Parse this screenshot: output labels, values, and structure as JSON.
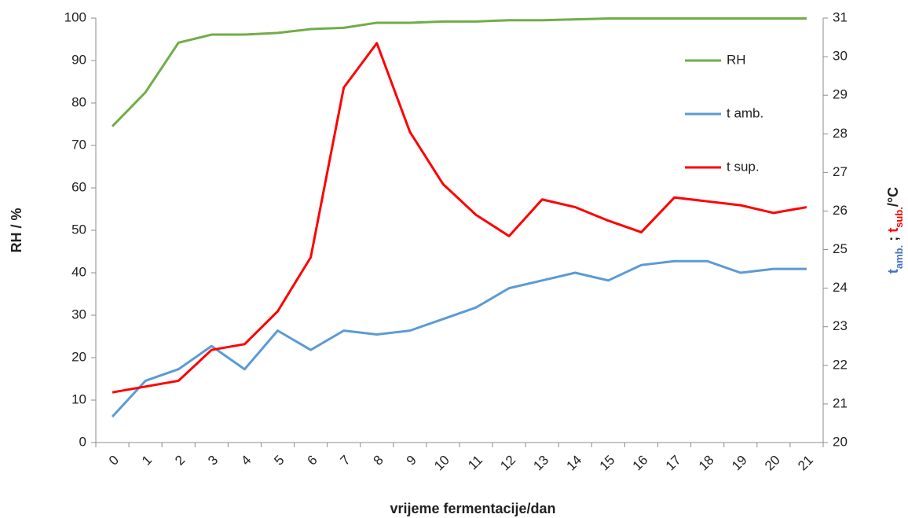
{
  "chart_data": {
    "type": "line",
    "x_label": "vrijeme fermentacije/dan",
    "y_label": "RH / %",
    "y2_label_parts": [
      {
        "text": "t",
        "color": "#4472c4",
        "sub": false
      },
      {
        "text": "amb.",
        "color": "#4472c4",
        "sub": true
      },
      {
        "text": " ; ",
        "color": "#222222",
        "sub": false
      },
      {
        "text": "t",
        "color": "#ff0000",
        "sub": false
      },
      {
        "text": "sub.",
        "color": "#ff0000",
        "sub": true
      },
      {
        "text": "/°C",
        "color": "#222222",
        "sub": false
      }
    ],
    "categories": [
      "0",
      "1",
      "2",
      "3",
      "4",
      "5",
      "6",
      "7",
      "8",
      "9",
      "10",
      "11",
      "12",
      "13",
      "14",
      "15",
      "16",
      "17",
      "18",
      "19",
      "20",
      "21"
    ],
    "series": [
      {
        "name": "RH",
        "color": "#70ad47",
        "axis": "y",
        "values": [
          74.5,
          82.5,
          94.2,
          96.1,
          96.1,
          96.5,
          97.4,
          97.7,
          98.9,
          98.9,
          99.2,
          99.2,
          99.5,
          99.5,
          99.7,
          99.9,
          99.9,
          99.9,
          99.9,
          99.9,
          99.9,
          99.9
        ]
      },
      {
        "name": "t amb.",
        "color": "#5b9bd5",
        "axis": "y2",
        "values": [
          20.67,
          21.6,
          21.9,
          22.5,
          21.9,
          22.9,
          22.4,
          22.9,
          22.8,
          22.9,
          23.2,
          23.5,
          24.0,
          24.2,
          24.4,
          24.2,
          24.6,
          24.7,
          24.7,
          24.4,
          24.5,
          24.5
        ]
      },
      {
        "name": "t sup.",
        "color": "#ff0000",
        "axis": "y2",
        "values": [
          21.3,
          21.45,
          21.6,
          22.4,
          22.55,
          23.4,
          24.8,
          29.2,
          30.35,
          28.05,
          26.7,
          25.9,
          25.35,
          26.3,
          26.1,
          25.75,
          25.45,
          26.35,
          26.25,
          26.15,
          25.95,
          26.1
        ]
      }
    ],
    "ylim": [
      0,
      100
    ],
    "yticks": [
      0,
      10,
      20,
      30,
      40,
      50,
      60,
      70,
      80,
      90,
      100
    ],
    "y2lim": [
      20,
      31
    ],
    "y2ticks": [
      20,
      21,
      22,
      23,
      24,
      25,
      26,
      27,
      28,
      29,
      30,
      31
    ],
    "legend": "upper right",
    "grid": false
  }
}
